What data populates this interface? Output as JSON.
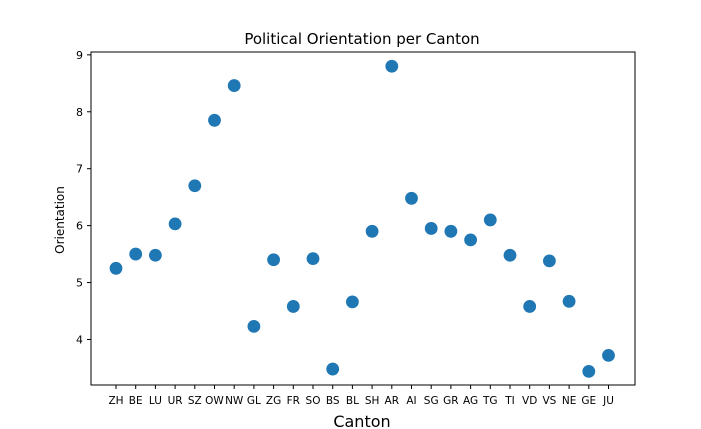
{
  "chart_data": {
    "type": "scatter",
    "title": "Political Orientation per Canton",
    "xlabel": "Canton",
    "ylabel": "Orientation",
    "categories": [
      "ZH",
      "BE",
      "LU",
      "UR",
      "SZ",
      "OW",
      "NW",
      "GL",
      "ZG",
      "FR",
      "SO",
      "BS",
      "BL",
      "SH",
      "AR",
      "AI",
      "SG",
      "GR",
      "AG",
      "TG",
      "TI",
      "VD",
      "VS",
      "NE",
      "GE",
      "JU"
    ],
    "values": [
      5.25,
      5.5,
      5.48,
      6.03,
      6.7,
      7.85,
      8.46,
      4.23,
      5.4,
      4.58,
      5.42,
      3.48,
      4.66,
      5.9,
      8.8,
      6.48,
      5.95,
      5.9,
      5.75,
      6.1,
      5.48,
      4.58,
      5.38,
      4.67,
      3.44,
      3.72
    ],
    "yticks": [
      4,
      5,
      6,
      7,
      8,
      9
    ],
    "ylim": [
      3.2,
      9.05
    ],
    "grid": false,
    "marker_color": "#1f77b4"
  }
}
